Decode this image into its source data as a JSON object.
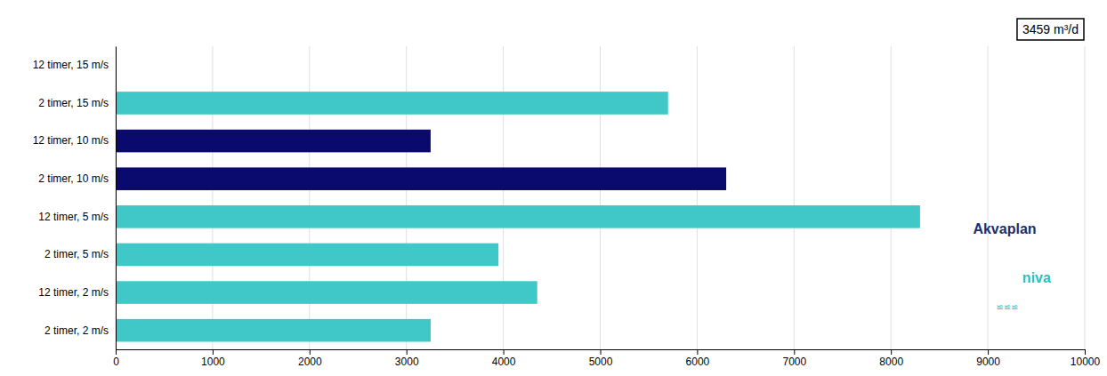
{
  "chart_data": {
    "type": "bar",
    "orientation": "horizontal",
    "categories": [
      "12 timer, 15 m/s",
      "2 timer, 15 m/s",
      "12 timer, 10 m/s",
      "2 timer, 10 m/s",
      "12 timer, 5 m/s",
      "2 timer, 5 m/s",
      "12 timer, 2 m/s",
      "2 timer, 2 m/s"
    ],
    "values": [
      0,
      5700,
      3250,
      6300,
      8300,
      3950,
      4350,
      3250
    ],
    "colors": [
      "#40C8C8",
      "#40C8C8",
      "#0A0A6E",
      "#0A0A6E",
      "#40C8C8",
      "#40C8C8",
      "#40C8C8",
      "#40C8C8"
    ],
    "xlim": [
      0,
      10000
    ],
    "xticks": [
      0,
      1000,
      2000,
      3000,
      4000,
      5000,
      6000,
      7000,
      8000,
      9000,
      10000
    ],
    "grid": true,
    "annotations": [
      {
        "text": "3459 m³/d"
      },
      {
        "text": "Akvaplan",
        "color": "#1a2f6e"
      },
      {
        "text": "niva",
        "color": "#2ABFBF"
      },
      {
        "text": "≌≌≌",
        "color": "#2ABFBF"
      }
    ]
  }
}
